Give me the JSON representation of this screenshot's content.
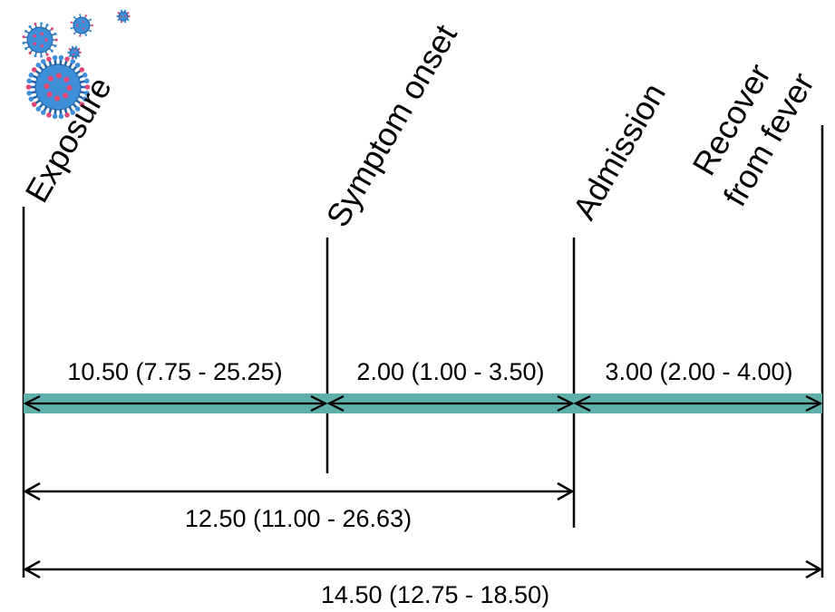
{
  "colors": {
    "line": "#000000",
    "bar": "#5fafab",
    "virus_body": "#3f8fd8",
    "virus_spike": "#e0487a",
    "virus_dark": "#1f5fa8"
  },
  "icons": [
    "virus-cluster-icon"
  ],
  "events": [
    {
      "id": "exposure",
      "lines": [
        "Exposure"
      ]
    },
    {
      "id": "symptom-onset",
      "lines": [
        "Symptom onset"
      ]
    },
    {
      "id": "admission",
      "lines": [
        "Admission"
      ]
    },
    {
      "id": "recover-from-fever",
      "lines": [
        "Recover",
        "from fever"
      ]
    }
  ],
  "intervals": {
    "exposure_to_onset": "10.50 (7.75 - 25.25)",
    "onset_to_admission": "2.00 (1.00 - 3.50)",
    "admission_to_recovery": "3.00 (2.00 - 4.00)",
    "exposure_to_admission": "12.50 (11.00 - 26.63)",
    "exposure_to_recovery": "14.50 (12.75 - 18.50)"
  }
}
